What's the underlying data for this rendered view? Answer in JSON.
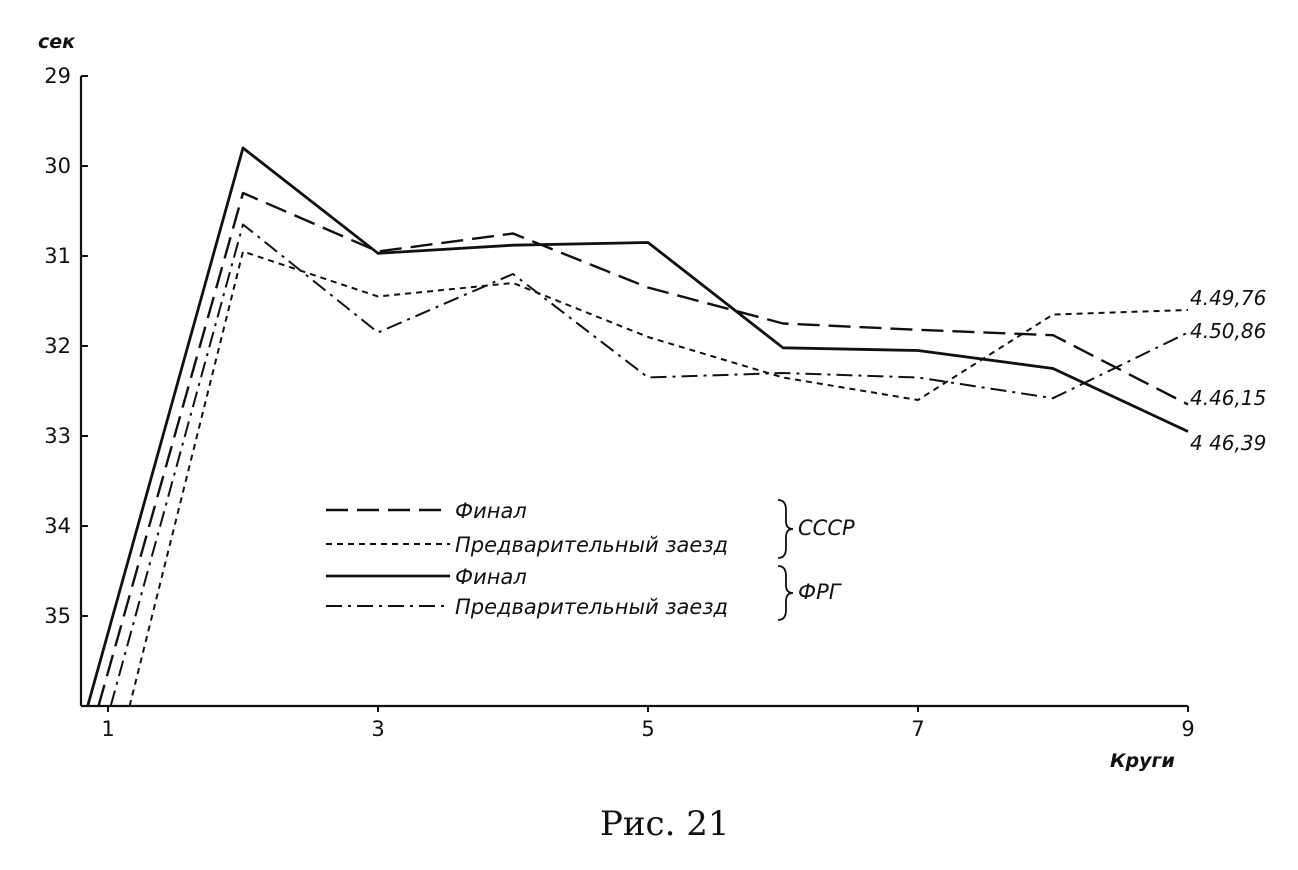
{
  "chart_data": {
    "type": "line",
    "title": "",
    "ylabel": "сек",
    "xlabel": "Круги",
    "y_inverted": true,
    "ylim": [
      36,
      29
    ],
    "xlim": [
      0.8,
      9
    ],
    "x_ticks": [
      1,
      3,
      5,
      7,
      9
    ],
    "y_ticks": [
      29,
      30,
      31,
      32,
      33,
      34,
      35
    ],
    "x": [
      1,
      2,
      3,
      4,
      5,
      6,
      7,
      8,
      9
    ],
    "series": [
      {
        "name": "Финал",
        "group": "СССР",
        "style": "long-dash",
        "values": [
          36.0,
          30.3,
          30.95,
          30.75,
          31.35,
          31.75,
          31.82,
          31.88,
          32.65
        ],
        "end_label": "4.46,15"
      },
      {
        "name": "Предварительный заезд",
        "group": "СССР",
        "style": "short-dash",
        "values": [
          36.0,
          30.95,
          31.45,
          31.3,
          31.9,
          32.35,
          32.6,
          31.65,
          31.6
        ],
        "end_label": "4.49,76"
      },
      {
        "name": "Финал",
        "group": "ФРГ",
        "style": "solid",
        "values": [
          36.0,
          29.8,
          30.97,
          30.88,
          30.85,
          32.02,
          32.05,
          32.25,
          32.95
        ],
        "end_label": "4 46,39"
      },
      {
        "name": "Предварительный заезд",
        "group": "ФРГ",
        "style": "dash-dot",
        "values": [
          36.0,
          30.65,
          31.85,
          31.2,
          32.35,
          32.3,
          32.35,
          32.58,
          31.85
        ],
        "end_label": "4.50,86"
      }
    ],
    "legend": {
      "placement": "lower-center",
      "groups": [
        {
          "label": "СССР",
          "entries": [
            "Финал",
            "Предварительный заезд"
          ]
        },
        {
          "label": "ФРГ",
          "entries": [
            "Финал",
            "Предварительный заезд"
          ]
        }
      ]
    },
    "grid": false,
    "caption": "Рис. 21"
  }
}
